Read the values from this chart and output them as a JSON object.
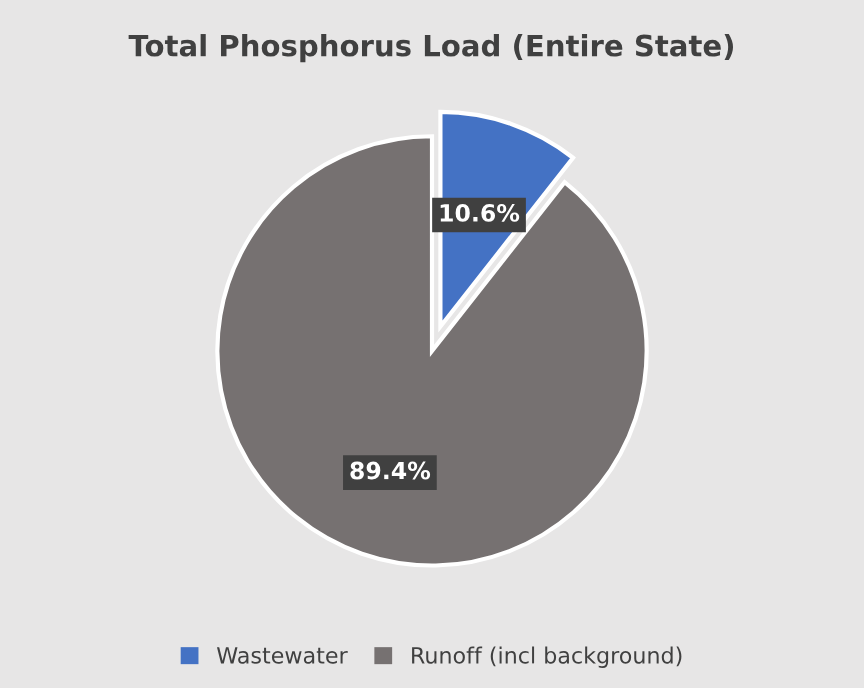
{
  "chart_data": {
    "type": "pie",
    "title": "Total Phosphorus Load (Entire State)",
    "categories": [
      "Wastewater",
      "Runoff (incl background)"
    ],
    "values": [
      10.6,
      89.4
    ],
    "value_labels": [
      "10.6%",
      "89.4%"
    ],
    "colors": [
      "#4472c4",
      "#767171"
    ],
    "legend": "bottom"
  }
}
